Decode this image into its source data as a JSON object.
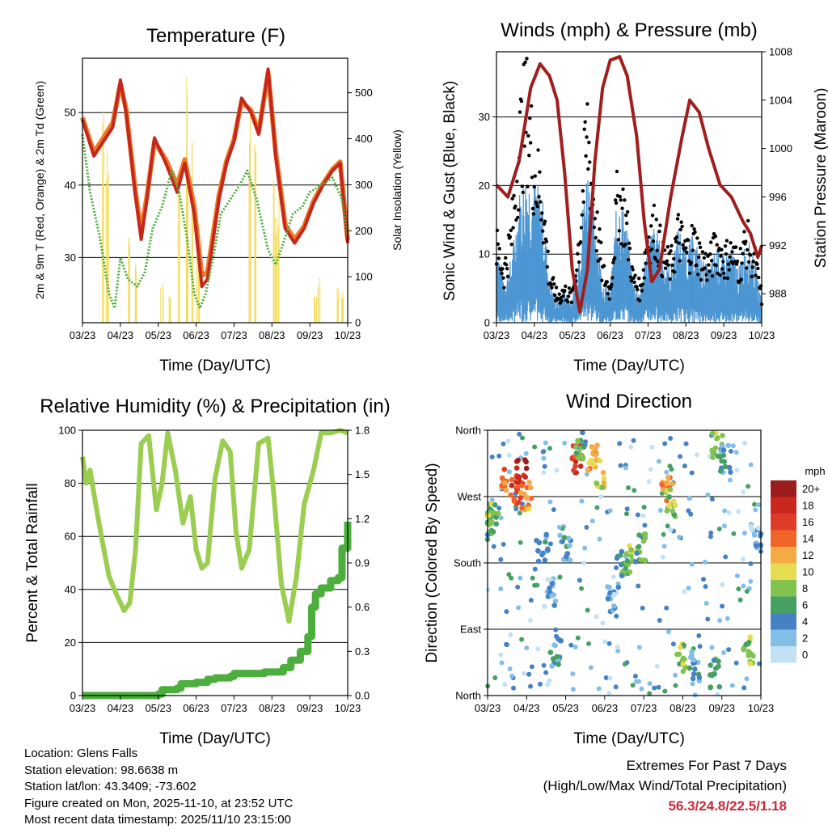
{
  "colors": {
    "temp_2m": "#c4281c",
    "temp_9m": "#f07a28",
    "dewpoint": "#4cae3c",
    "solar": "#f2dc60",
    "wind": "#4c96d2",
    "gust": "#000000",
    "pressure": "#a01e1e",
    "rh": "#9acd50",
    "precip": "#4cae3c"
  },
  "chart_data": [
    {
      "id": "temperature",
      "type": "line",
      "title": "Temperature (F)",
      "xlabel": "Time (Day/UTC)",
      "ylabel": "2m & 9m T (Red, Orange) & 2m Td (Green)",
      "y2label": "Solar Insolation (Yellow)",
      "categories": [
        "03/23",
        "04/23",
        "05/23",
        "06/23",
        "07/23",
        "08/23",
        "09/23",
        "10/23"
      ],
      "xlim": [
        0,
        7
      ],
      "ylim": [
        21,
        57.5
      ],
      "yticks": [
        30,
        40,
        50
      ],
      "y2lim": [
        0,
        575
      ],
      "y2ticks": [
        0,
        100,
        200,
        300,
        400,
        500
      ],
      "grid": true,
      "series": [
        {
          "name": "2m T",
          "x": [
            0,
            0.3,
            0.55,
            0.8,
            1.0,
            1.15,
            1.4,
            1.55,
            1.7,
            1.9,
            2.2,
            2.5,
            2.7,
            2.95,
            3.15,
            3.3,
            3.6,
            3.8,
            4.0,
            4.2,
            4.45,
            4.65,
            4.9,
            5.1,
            5.35,
            5.6,
            5.85,
            6.1,
            6.35,
            6.6,
            6.8,
            7.0
          ],
          "values": [
            49,
            44,
            46,
            48,
            54.5,
            50,
            38.5,
            32.5,
            38,
            46.5,
            43,
            39,
            43,
            36,
            26,
            27,
            38,
            43,
            46,
            52,
            50,
            47,
            56,
            44,
            34,
            32,
            34,
            37.5,
            40,
            42,
            43,
            32
          ]
        },
        {
          "name": "9m T",
          "x": [
            0,
            0.3,
            0.55,
            0.8,
            1.0,
            1.15,
            1.4,
            1.55,
            1.7,
            1.9,
            2.2,
            2.5,
            2.7,
            2.95,
            3.15,
            3.3,
            3.6,
            3.8,
            4.0,
            4.2,
            4.45,
            4.65,
            4.9,
            5.1,
            5.35,
            5.6,
            5.85,
            6.1,
            6.35,
            6.6,
            6.8,
            7.0
          ],
          "values": [
            49.3,
            44.5,
            46.5,
            48.6,
            54,
            50.5,
            39,
            33.5,
            38.5,
            46,
            43.5,
            40,
            43.5,
            37,
            27.5,
            28,
            38.5,
            43.3,
            46.3,
            51.5,
            50.3,
            47.3,
            55.5,
            44.5,
            34.5,
            32.5,
            34.3,
            37.8,
            40.2,
            42.2,
            43.2,
            32.4
          ]
        },
        {
          "name": "2m Td",
          "x": [
            0,
            0.2,
            0.45,
            0.7,
            0.85,
            1.0,
            1.2,
            1.45,
            1.65,
            1.85,
            2.1,
            2.35,
            2.55,
            2.75,
            2.95,
            3.1,
            3.25,
            3.45,
            3.65,
            3.9,
            4.15,
            4.35,
            4.6,
            4.9,
            5.1,
            5.3,
            5.55,
            5.8,
            6.0,
            6.3,
            6.6,
            6.85,
            7.0
          ],
          "values": [
            47,
            39,
            33,
            25,
            23,
            30,
            27,
            26,
            28,
            34,
            37,
            42,
            39,
            33,
            25,
            23,
            25,
            30,
            36,
            38,
            40,
            42,
            38,
            31,
            29,
            32,
            36,
            37,
            39,
            40,
            41,
            38,
            33
          ]
        },
        {
          "name": "Solar Insolation",
          "axis": "y2",
          "x": [
            0.55,
            0.65,
            1.25,
            1.4,
            2.1,
            2.3,
            2.55,
            2.75,
            2.9,
            3.05,
            4.4,
            4.55,
            5.05,
            5.15,
            6.15,
            6.25,
            6.75,
            6.85
          ],
          "values": [
            480,
            400,
            200,
            150,
            100,
            60,
            380,
            560,
            420,
            200,
            500,
            440,
            360,
            300,
            60,
            100,
            80,
            70
          ]
        }
      ]
    },
    {
      "id": "winds",
      "type": "line",
      "title": "Winds (mph) & Pressure (mb)",
      "xlabel": "Time (Day/UTC)",
      "ylabel": "Sonic Wind & Gust (Blue, Black)",
      "y2label": "Station Pressure (Maroon)",
      "categories": [
        "03/23",
        "04/23",
        "05/23",
        "06/23",
        "07/23",
        "08/23",
        "09/23",
        "10/23"
      ],
      "xlim": [
        0,
        7
      ],
      "ylim": [
        0,
        39.5
      ],
      "yticks": [
        0,
        10,
        20,
        30
      ],
      "y2lim": [
        985.6,
        1008
      ],
      "y2ticks": [
        988,
        992,
        996,
        1000,
        1004,
        1008
      ],
      "grid": true,
      "series": [
        {
          "name": "Sonic Wind",
          "x": [
            0,
            0.2,
            0.4,
            0.6,
            0.8,
            1.0,
            1.2,
            1.4,
            1.6,
            1.8,
            2.0,
            2.2,
            2.4,
            2.6,
            2.8,
            3.0,
            3.2,
            3.4,
            3.6,
            3.8,
            4.0,
            4.2,
            4.4,
            4.6,
            4.8,
            5.0,
            5.2,
            5.4,
            5.6,
            5.8,
            6.0,
            6.2,
            6.4,
            6.6,
            6.8,
            7.0
          ],
          "values": [
            8,
            4,
            6,
            12,
            14,
            13,
            12,
            4,
            2,
            3,
            2,
            8,
            15,
            10,
            4,
            3,
            12,
            10,
            4,
            3,
            8,
            9,
            6,
            5,
            9,
            7,
            8,
            6,
            5,
            7,
            6,
            7,
            5,
            8,
            6,
            2
          ]
        },
        {
          "name": "Gust",
          "x": [
            0,
            0.2,
            0.4,
            0.6,
            0.8,
            1.0,
            1.2,
            1.4,
            1.6,
            1.8,
            2.0,
            2.2,
            2.4,
            2.6,
            2.8,
            3.0,
            3.2,
            3.4,
            3.6,
            3.8,
            4.0,
            4.2,
            4.4,
            4.6,
            4.8,
            5.0,
            5.2,
            5.4,
            5.6,
            5.8,
            6.0,
            6.2,
            6.4,
            6.6,
            6.8,
            7.0
          ],
          "values": [
            12,
            8,
            14,
            28,
            34,
            24,
            20,
            7,
            4,
            5,
            4,
            14,
            30,
            17,
            8,
            5,
            20,
            17,
            7,
            5,
            14,
            15,
            10,
            9,
            14,
            11,
            13,
            10,
            9,
            12,
            10,
            11,
            9,
            13,
            10,
            4
          ]
        },
        {
          "name": "Station Pressure",
          "axis": "y2",
          "x": [
            0,
            0.3,
            0.6,
            0.9,
            1.15,
            1.4,
            1.6,
            1.8,
            2.0,
            2.2,
            2.4,
            2.6,
            2.8,
            3.0,
            3.25,
            3.45,
            3.7,
            3.9,
            4.1,
            4.3,
            4.6,
            4.9,
            5.1,
            5.35,
            5.6,
            5.9,
            6.2,
            6.5,
            6.7,
            6.9,
            7.0
          ],
          "values": [
            997,
            996,
            999,
            1005,
            1007,
            1006,
            1004,
            998,
            990,
            986.5,
            990,
            999,
            1005,
            1007.3,
            1007.6,
            1006,
            1001,
            994,
            989,
            990,
            996,
            1001,
            1004,
            1003,
            1000,
            997,
            996,
            994,
            993,
            991,
            992
          ]
        }
      ]
    },
    {
      "id": "humidity",
      "type": "line",
      "title": "Relative Humidity (%) & Precipitation (in)",
      "xlabel": "Time (Day/UTC)",
      "ylabel": "Percent & Total Rainfall",
      "categories": [
        "03/23",
        "04/23",
        "05/23",
        "06/23",
        "07/23",
        "08/23",
        "09/23",
        "10/23"
      ],
      "xlim": [
        0,
        7
      ],
      "ylim": [
        0,
        100
      ],
      "yticks": [
        0,
        20,
        40,
        60,
        80,
        100
      ],
      "y2lim": [
        0,
        1.8
      ],
      "y2ticks": [
        0.0,
        0.3,
        0.6,
        0.9,
        1.2,
        1.5,
        1.8
      ],
      "grid": true,
      "series": [
        {
          "name": "Relative Humidity",
          "x": [
            0,
            0.1,
            0.2,
            0.35,
            0.5,
            0.7,
            0.9,
            1.1,
            1.25,
            1.4,
            1.55,
            1.75,
            1.95,
            2.1,
            2.25,
            2.45,
            2.65,
            2.85,
            3.0,
            3.15,
            3.3,
            3.5,
            3.7,
            3.9,
            4.05,
            4.2,
            4.4,
            4.65,
            4.9,
            5.05,
            5.25,
            5.45,
            5.65,
            5.85,
            6.1,
            6.3,
            6.55,
            6.8,
            7.0
          ],
          "values": [
            90,
            80,
            85,
            72,
            60,
            45,
            38,
            32,
            35,
            55,
            95,
            98,
            70,
            80,
            99,
            85,
            65,
            75,
            55,
            48,
            50,
            82,
            96,
            92,
            62,
            48,
            55,
            95,
            97,
            76,
            42,
            28,
            45,
            72,
            85,
            99,
            99,
            100,
            99
          ]
        },
        {
          "name": "Total Rainfall",
          "axis": "y2",
          "x": [
            0,
            0.5,
            1.0,
            1.5,
            2.0,
            2.1,
            2.5,
            2.6,
            3.0,
            3.3,
            3.5,
            3.9,
            4.0,
            4.4,
            4.8,
            5.1,
            5.3,
            5.5,
            5.75,
            5.95,
            6.05,
            6.15,
            6.3,
            6.55,
            6.75,
            6.85,
            7.0
          ],
          "values": [
            0.0,
            0.0,
            0.0,
            0.0,
            0.01,
            0.04,
            0.05,
            0.08,
            0.09,
            0.11,
            0.12,
            0.13,
            0.15,
            0.15,
            0.16,
            0.16,
            0.19,
            0.24,
            0.3,
            0.4,
            0.6,
            0.69,
            0.73,
            0.78,
            0.8,
            1.0,
            1.18
          ]
        }
      ]
    },
    {
      "id": "direction",
      "type": "scatter",
      "title": "Wind Direction",
      "xlabel": "Time (Day/UTC)",
      "ylabel": "Direction (Colored By Speed)",
      "categories": [
        "03/23",
        "04/23",
        "05/23",
        "06/23",
        "07/23",
        "08/23",
        "09/23",
        "10/23"
      ],
      "xlim": [
        0,
        7
      ],
      "ylim": [
        0,
        360
      ],
      "yticks": [
        0,
        90,
        180,
        270,
        360
      ],
      "ytick_labels": [
        "North",
        "East",
        "South",
        "West",
        "North"
      ],
      "colorbar": {
        "title": "mph",
        "labels": [
          "20+",
          "18",
          "16",
          "14",
          "12",
          "10",
          "8",
          "6",
          "4",
          "2",
          "0"
        ],
        "colors": [
          "#9c1c1c",
          "#c8281e",
          "#dc3c28",
          "#f06428",
          "#f5aa46",
          "#e6dc50",
          "#82c350",
          "#46a064",
          "#4682c3",
          "#82bee6",
          "#c3e1f5"
        ]
      },
      "clusters": [
        {
          "x": 0,
          "y": 230,
          "speed": 6
        },
        {
          "x": 0.15,
          "y": 250,
          "speed": 8
        },
        {
          "x": 0.5,
          "y": 290,
          "speed": 14
        },
        {
          "x": 0.75,
          "y": 280,
          "speed": 16
        },
        {
          "x": 0.85,
          "y": 300,
          "speed": 18
        },
        {
          "x": 1.0,
          "y": 270,
          "speed": 12
        },
        {
          "x": 1.4,
          "y": 200,
          "speed": 4
        },
        {
          "x": 1.6,
          "y": 140,
          "speed": 2
        },
        {
          "x": 1.75,
          "y": 60,
          "speed": 4
        },
        {
          "x": 2.0,
          "y": 200,
          "speed": 4
        },
        {
          "x": 2.3,
          "y": 320,
          "speed": 16
        },
        {
          "x": 2.4,
          "y": 340,
          "speed": 6
        },
        {
          "x": 2.7,
          "y": 320,
          "speed": 12
        },
        {
          "x": 2.85,
          "y": 300,
          "speed": 10
        },
        {
          "x": 3.2,
          "y": 130,
          "speed": 2
        },
        {
          "x": 3.45,
          "y": 180,
          "speed": 6
        },
        {
          "x": 3.7,
          "y": 185,
          "speed": 8
        },
        {
          "x": 3.9,
          "y": 200,
          "speed": 6
        },
        {
          "x": 4.6,
          "y": 280,
          "speed": 12
        },
        {
          "x": 4.7,
          "y": 260,
          "speed": 8
        },
        {
          "x": 5.0,
          "y": 50,
          "speed": 8
        },
        {
          "x": 5.3,
          "y": 40,
          "speed": 4
        },
        {
          "x": 5.8,
          "y": 30,
          "speed": 6
        },
        {
          "x": 5.9,
          "y": 340,
          "speed": 8
        },
        {
          "x": 6.1,
          "y": 320,
          "speed": 4
        },
        {
          "x": 6.7,
          "y": 60,
          "speed": 8
        },
        {
          "x": 6.9,
          "y": 220,
          "speed": 2
        }
      ]
    }
  ],
  "footer": {
    "location": "Location: Glens Falls",
    "elevation": "Station elevation: 98.6638 m",
    "latlon": "Station lat/lon: 43.3409; -73.602",
    "created": "Figure created on Mon, 2025-11-10, at 23:52 UTC",
    "recent": "Most recent data timestamp: 2025/11/10 23:15:00"
  },
  "extremes": {
    "heading": "Extremes For Past 7 Days",
    "subheading": "(High/Low/Max Wind/Total Precipitation)",
    "values": "56.3/24.8/22.5/1.18"
  }
}
